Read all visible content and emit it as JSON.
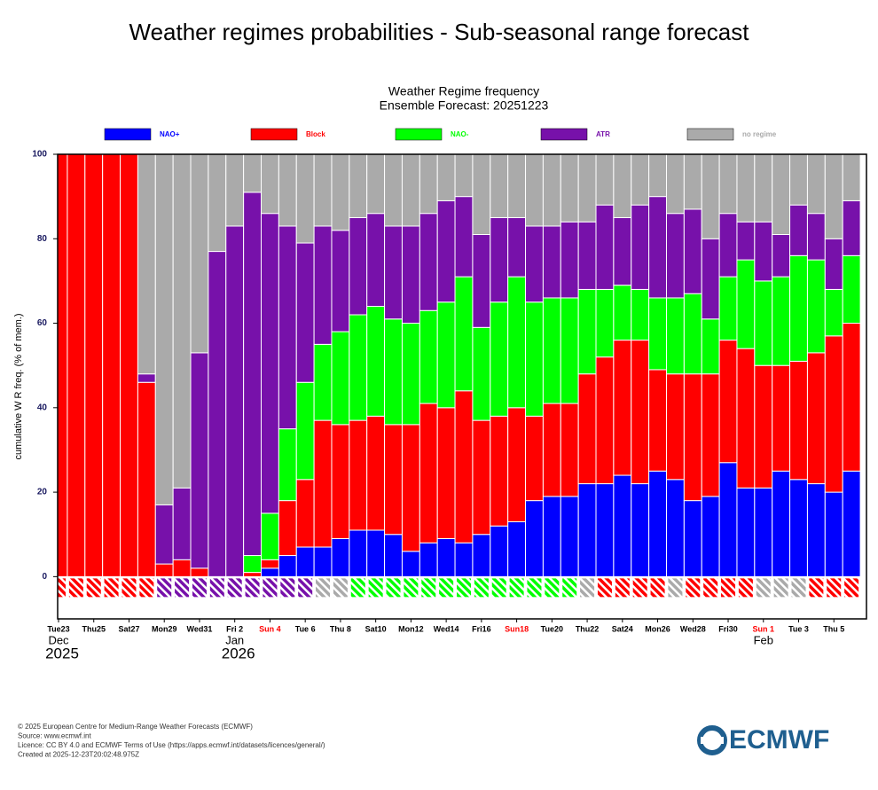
{
  "page_title": "Weather regimes probabilities - Sub-seasonal range forecast",
  "chart_data": {
    "type": "stacked-bar",
    "title": "Weather Regime frequency",
    "subtitle": "Ensemble Forecast: 20251223",
    "ylabel": "cumulative W R freq. (% of mem.)",
    "categories": [
      "Tue23",
      null,
      "Thu25",
      null,
      "Sat27",
      null,
      "Mon29",
      null,
      "Wed31",
      null,
      "Fri 2",
      null,
      "Sun 4",
      null,
      "Tue 6",
      null,
      "Thu 8",
      null,
      "Sat10",
      null,
      "Mon12",
      null,
      "Wed14",
      null,
      "Fri16",
      null,
      "Sun18",
      null,
      "Tue20",
      null,
      "Thu22",
      null,
      "Sat24",
      null,
      "Mon26",
      null,
      "Wed28",
      null,
      "Fri30",
      null,
      "Sun 1",
      null,
      "Tue 3",
      null,
      "Thu 5",
      null
    ],
    "highlight_indices": [
      12,
      26,
      40
    ],
    "highlight_color": "#ff0000",
    "month_labels": [
      {
        "index": 0,
        "label": "Dec"
      },
      {
        "index": 10,
        "label": "Jan"
      },
      {
        "index": 40,
        "label": "Feb"
      }
    ],
    "year_labels": [
      {
        "index": 0,
        "label": "2025"
      },
      {
        "index": 10,
        "label": "2026"
      }
    ],
    "series": [
      {
        "name": "NAO+",
        "color": "#0000ff",
        "values": [
          0,
          0,
          0,
          0,
          0,
          0,
          0,
          0,
          0,
          0,
          0,
          0,
          2,
          5,
          7,
          7,
          9,
          11,
          11,
          10,
          6,
          8,
          9,
          8,
          10,
          12,
          13,
          18,
          19,
          19,
          22,
          22,
          24,
          22,
          25,
          23,
          18,
          19,
          27,
          21,
          21,
          25,
          23,
          22,
          20,
          25
        ]
      },
      {
        "name": "Block",
        "color": "#ff0000",
        "values": [
          100,
          100,
          100,
          100,
          100,
          46,
          3,
          4,
          2,
          0,
          0,
          1,
          2,
          13,
          16,
          30,
          27,
          26,
          27,
          26,
          30,
          33,
          31,
          36,
          27,
          26,
          27,
          20,
          22,
          22,
          26,
          30,
          32,
          34,
          24,
          25,
          30,
          29,
          29,
          33,
          29,
          25,
          28,
          31,
          37,
          35
        ]
      },
      {
        "name": "NAO-",
        "color": "#00ff00",
        "values": [
          0,
          0,
          0,
          0,
          0,
          0,
          0,
          0,
          0,
          0,
          0,
          4,
          11,
          17,
          23,
          18,
          22,
          25,
          26,
          25,
          24,
          22,
          25,
          27,
          22,
          27,
          31,
          27,
          25,
          25,
          20,
          16,
          13,
          12,
          17,
          18,
          19,
          13,
          15,
          21,
          20,
          21,
          25,
          22,
          11,
          16
        ]
      },
      {
        "name": "ATR",
        "color": "#7711aa",
        "values": [
          0,
          0,
          0,
          0,
          0,
          2,
          14,
          17,
          51,
          77,
          83,
          86,
          71,
          48,
          33,
          28,
          24,
          23,
          22,
          22,
          23,
          23,
          24,
          19,
          22,
          20,
          14,
          18,
          17,
          18,
          16,
          20,
          16,
          20,
          24,
          20,
          20,
          19,
          15,
          9,
          14,
          10,
          12,
          11,
          12,
          13
        ]
      },
      {
        "name": "no regime",
        "color": "#aaaaaa",
        "values": [
          0,
          0,
          0,
          0,
          0,
          52,
          83,
          79,
          47,
          23,
          17,
          9,
          14,
          17,
          21,
          17,
          18,
          15,
          14,
          17,
          17,
          14,
          11,
          10,
          19,
          15,
          15,
          17,
          17,
          16,
          16,
          12,
          15,
          12,
          10,
          14,
          13,
          20,
          14,
          16,
          16,
          19,
          12,
          14,
          20,
          11
        ]
      }
    ],
    "regime_strip": [
      "Block",
      "Block",
      "Block",
      "Block",
      "Block",
      "Block",
      "ATR",
      "ATR",
      "ATR",
      "ATR",
      "ATR",
      "ATR",
      "ATR",
      "ATR",
      "ATR",
      "no regime",
      "no regime",
      "NAO-",
      "NAO-",
      "NAO-",
      "NAO-",
      "NAO-",
      "NAO-",
      "NAO-",
      "NAO-",
      "NAO-",
      "NAO-",
      "NAO-",
      "NAO-",
      "NAO-",
      "no regime",
      "Block",
      "Block",
      "Block",
      "Block",
      "no regime",
      "Block",
      "Block",
      "Block",
      "Block",
      "no regime",
      "no regime",
      "no regime",
      "Block",
      "Block",
      "Block"
    ],
    "ylim": [
      -10,
      100
    ],
    "yticks": [
      0,
      20,
      40,
      60,
      80,
      100
    ],
    "grid": false
  },
  "footer": {
    "lines": [
      "© 2025 European Centre for Medium-Range Weather Forecasts (ECMWF)",
      "Source: www.ecmwf.int",
      "Licence: CC BY 4.0 and ECMWF Terms of Use (https://apps.ecmwf.int/datasets/licences/general/)",
      "Created at 2025-12-23T20:02:48.975Z"
    ],
    "logo": "ECMWF"
  }
}
